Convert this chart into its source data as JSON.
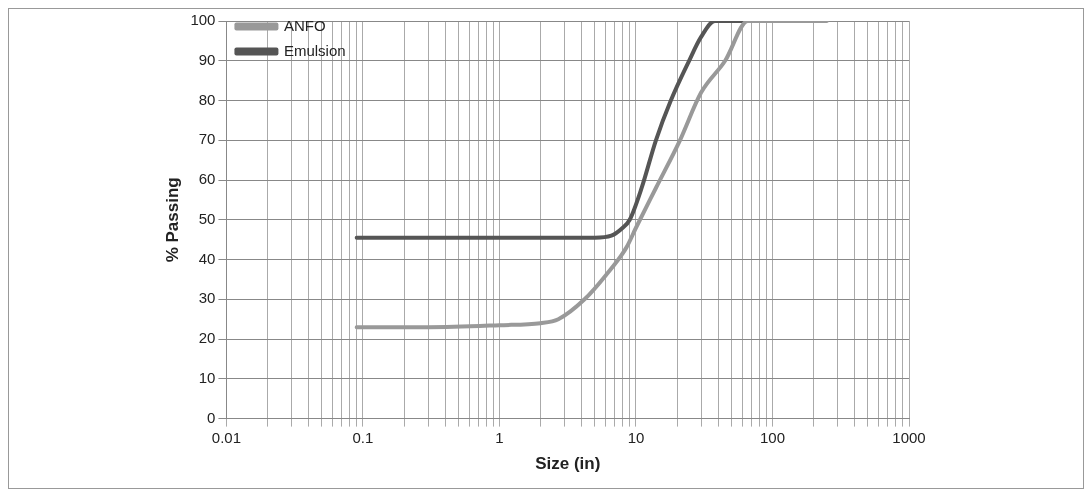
{
  "chart_data": {
    "type": "line",
    "xlabel": "Size (in)",
    "ylabel": "% Passing",
    "log": "x",
    "grid": true,
    "legend": "top left",
    "marker": "none",
    "line_style": "solid",
    "xlim": [
      0.01,
      1000
    ],
    "xticks": [
      0.01,
      {
        "value": 0.02,
        "label": null
      },
      {
        "value": 0.03,
        "label": null
      },
      {
        "value": 0.04,
        "label": null
      },
      {
        "value": 0.05,
        "label": null
      },
      {
        "value": 0.06,
        "label": null
      },
      {
        "value": 0.07,
        "label": null
      },
      {
        "value": 0.08,
        "label": null
      },
      {
        "value": 0.09,
        "label": null
      },
      0.1,
      {
        "value": 0.2,
        "label": null
      },
      {
        "value": 0.3,
        "label": null
      },
      {
        "value": 0.4,
        "label": null
      },
      {
        "value": 0.5,
        "label": null
      },
      {
        "value": 0.6,
        "label": null
      },
      {
        "value": 0.7,
        "label": null
      },
      {
        "value": 0.8,
        "label": null
      },
      {
        "value": 0.9,
        "label": null
      },
      1,
      {
        "value": 2,
        "label": null
      },
      {
        "value": 3,
        "label": null
      },
      {
        "value": 4,
        "label": null
      },
      {
        "value": 5,
        "label": null
      },
      {
        "value": 6,
        "label": null
      },
      {
        "value": 7,
        "label": null
      },
      {
        "value": 8,
        "label": null
      },
      {
        "value": 9,
        "label": null
      },
      10,
      {
        "value": 20,
        "label": null
      },
      {
        "value": 30,
        "label": null
      },
      {
        "value": 40,
        "label": null
      },
      {
        "value": 50,
        "label": null
      },
      {
        "value": 60,
        "label": null
      },
      {
        "value": 70,
        "label": null
      },
      {
        "value": 80,
        "label": null
      },
      {
        "value": 90,
        "label": null
      },
      100,
      {
        "value": 200,
        "label": null
      },
      {
        "value": 300,
        "label": null
      },
      {
        "value": 400,
        "label": null
      },
      {
        "value": 500,
        "label": null
      },
      {
        "value": 600,
        "label": null
      },
      {
        "value": 700,
        "label": null
      },
      {
        "value": 800,
        "label": null
      },
      {
        "value": 900,
        "label": null
      },
      1000
    ],
    "ylim": [
      0,
      100
    ],
    "yticks": [
      0,
      10,
      20,
      30,
      40,
      50,
      60,
      70,
      80,
      90,
      100
    ],
    "series": [
      {
        "name": "ANFO",
        "color": "#999999",
        "x": [
          0.09,
          0.3,
          1,
          2,
          2.7,
          4.2,
          6,
          8.5,
          10,
          14,
          21,
          30,
          45,
          66,
          100,
          250
        ],
        "values": [
          23,
          23,
          23.5,
          24,
          25,
          30,
          36,
          43,
          48,
          58,
          70,
          82,
          90,
          100,
          100,
          100
        ]
      },
      {
        "name": "Emulsion",
        "color": "#555555",
        "x": [
          0.09,
          0.5,
          2,
          5,
          6.6,
          8,
          9,
          11,
          14,
          18,
          24.5,
          30,
          37.8,
          60,
          100
        ],
        "values": [
          45.5,
          45.5,
          45.5,
          45.5,
          46,
          48,
          50,
          58,
          70,
          80,
          90,
          96,
          100,
          100,
          100
        ]
      }
    ]
  }
}
